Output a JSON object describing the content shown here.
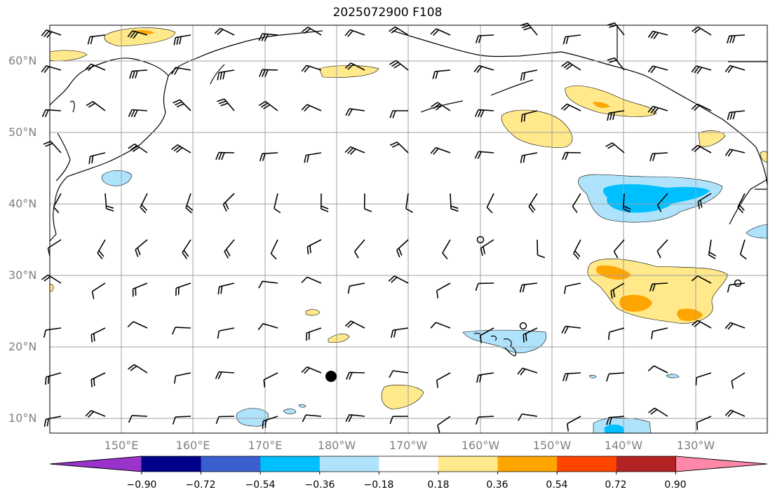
{
  "title": "2025072900 F108",
  "lat_labels": [
    "60°N",
    "50°N",
    "40°N",
    "30°N",
    "20°N",
    "10°N"
  ],
  "lon_labels": [
    "150°E",
    "160°E",
    "170°E",
    "180°W",
    "170°W",
    "160°W",
    "150°W",
    "140°W",
    "130°W"
  ],
  "colorbar": {
    "ticks": [
      "−0.90",
      "−0.72",
      "−0.54",
      "−0.36",
      "−0.18",
      "0.18",
      "0.36",
      "0.54",
      "0.72",
      "0.90"
    ],
    "colors": [
      "#9933cc",
      "#00008b",
      "#3a5fcd",
      "#00bfff",
      "#aee3fb",
      "#ffffff",
      "#ffe98a",
      "#ffa500",
      "#ff4500",
      "#b22222",
      "#ff88aa"
    ]
  },
  "map": {
    "extent_lon": [
      "140°E",
      "125°W"
    ],
    "extent_lat": [
      "8°N",
      "65°N"
    ],
    "gridlines": true,
    "wind_barbs": true,
    "markers": [
      {
        "symbol": "filled-circle",
        "lon": "179°W",
        "lat": "16°N"
      },
      {
        "symbol": "open-circle",
        "lon": "160°W",
        "lat": "35°N"
      },
      {
        "symbol": "open-circle",
        "lon": "154°W",
        "lat": "23°N"
      },
      {
        "symbol": "open-circle",
        "lon": "124°W",
        "lat": "29°N"
      }
    ]
  }
}
